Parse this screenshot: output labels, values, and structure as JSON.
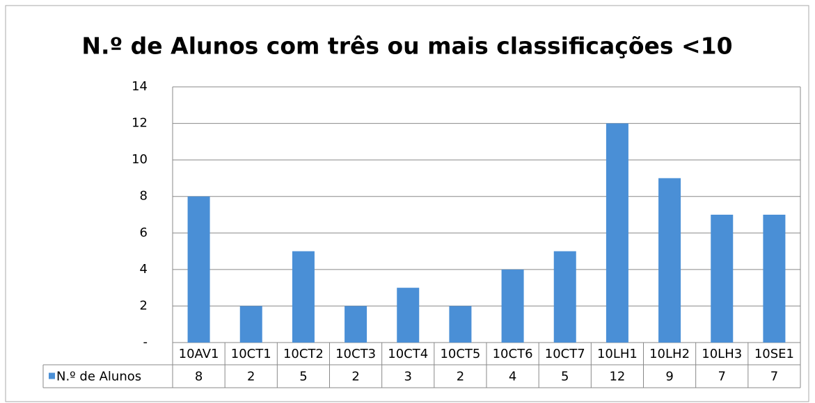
{
  "chart_data": {
    "type": "bar",
    "title": "N.º de Alunos com três ou mais classificações <10",
    "categories": [
      "10AV1",
      "10CT1",
      "10CT2",
      "10CT3",
      "10CT4",
      "10CT5",
      "10CT6",
      "10CT7",
      "10LH1",
      "10LH2",
      "10LH3",
      "10SE1"
    ],
    "series": [
      {
        "name": "N.º de Alunos",
        "color": "#4a8fd6",
        "values": [
          8,
          2,
          5,
          2,
          3,
          2,
          4,
          5,
          12,
          9,
          7,
          7
        ]
      }
    ],
    "ylim": [
      0,
      14
    ],
    "yticks": [
      {
        "value": 0,
        "label": "-"
      },
      2,
      4,
      6,
      8,
      10,
      12,
      14
    ],
    "grid": true
  }
}
